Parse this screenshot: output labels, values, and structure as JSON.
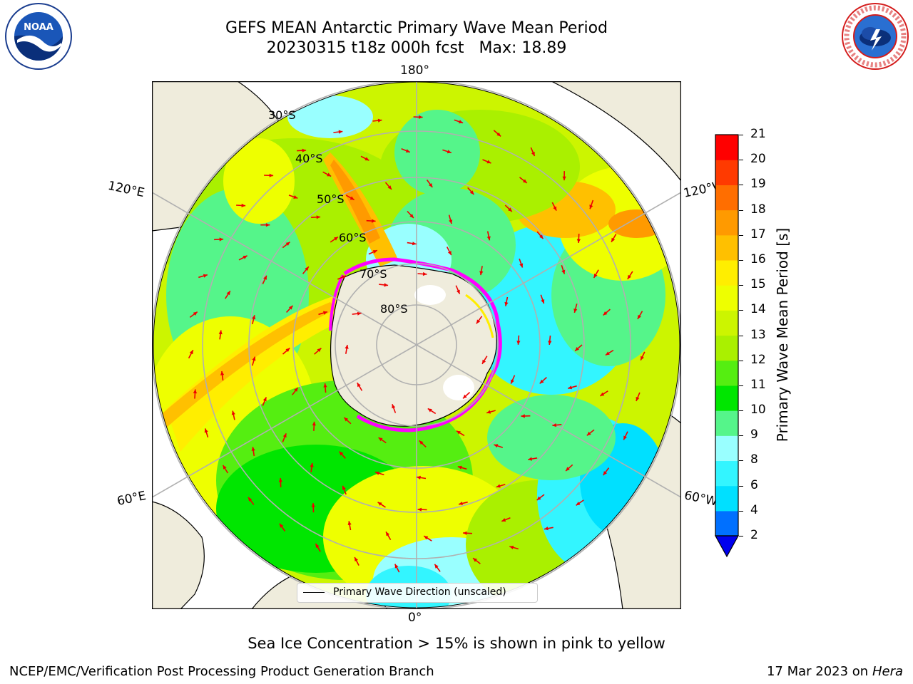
{
  "header": {
    "title_line1": "GEFS MEAN Antarctic Primary Wave Mean Period",
    "title_line2_date": "20230315 t18z 000h fcst",
    "title_line2_max": "Max: 18.89"
  },
  "logos": {
    "left": {
      "name": "noaa-logo",
      "text": "NOAA",
      "ring_text": "NATIONAL OCEANIC AND ATMOSPHERIC ADMINISTRATION · U.S. DEPARTMENT OF COMMERCE"
    },
    "right": {
      "name": "nws-logo",
      "ring_text": "NATIONAL WEATHER SERVICE"
    }
  },
  "map": {
    "projection": "South Polar Stereographic",
    "longitude_labels": {
      "top": "180°",
      "bottom": "0°",
      "upper_left": "120°E",
      "lower_left": "60°E",
      "upper_right": "120°W",
      "lower_right": "60°W"
    },
    "latitude_labels": [
      "30°S",
      "40°S",
      "50°S",
      "60°S",
      "70°S",
      "80°S"
    ],
    "legend_label": "Primary Wave Direction (unscaled)",
    "arrow_color": "#ee0000",
    "sea_ice_color_range": [
      "#ff00ff",
      "#ffff00"
    ],
    "land_color": "#efecdc",
    "grid_color": "#b0b0b0"
  },
  "colorbar": {
    "label": "Primary Wave Mean Period [s]",
    "ticks": [
      "2",
      "4",
      "6",
      "8",
      "9",
      "10",
      "11",
      "12",
      "13",
      "14",
      "15",
      "16",
      "17",
      "18",
      "19",
      "20",
      "21"
    ],
    "colors": [
      "#0070ff",
      "#00e0ff",
      "#33f5ff",
      "#99ffff",
      "#55f58a",
      "#00e600",
      "#55ee11",
      "#aaf000",
      "#ccf500",
      "#eeff00",
      "#ffee00",
      "#ffc000",
      "#ff9a00",
      "#ff6e00",
      "#ff3a00",
      "#ff0000"
    ],
    "extend_min_color": "#0000ee"
  },
  "note": "Sea Ice Concentration > 15% is shown in pink to yellow",
  "footer": {
    "left": "NCEP/EMC/Verification Post Processing Product Generation Branch",
    "right_date": "17 Mar 2023 on",
    "right_machine": "Hera"
  }
}
